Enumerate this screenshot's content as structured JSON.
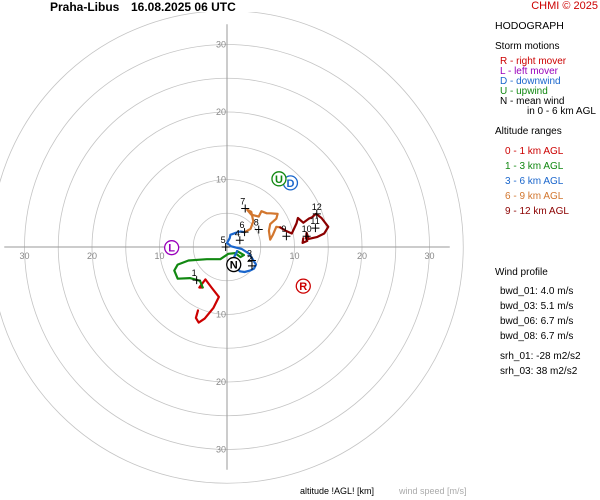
{
  "header": {
    "station": "Praha-Libus",
    "datetime": "16.08.2025 06 UTC",
    "copyright": "CHMI © 2025"
  },
  "panel": {
    "hodograph_title": "HODOGRAPH",
    "storm_motions_title": "Storm motions",
    "storm_motions": [
      {
        "text": "R - right mover",
        "color": "#cc0000"
      },
      {
        "text": "L - left mover",
        "color": "#9900bb"
      },
      {
        "text": "D - downwind",
        "color": "#1a66cc"
      },
      {
        "text": "U - upwind",
        "color": "#118811"
      },
      {
        "text": "N - mean wind",
        "color": "#000000"
      },
      {
        "text": "in 0 - 6 km AGL",
        "color": "#000000"
      }
    ],
    "altitude_title": "Altitude ranges",
    "altitude_ranges": [
      {
        "text": "0 - 1 km AGL",
        "color": "#cc0000"
      },
      {
        "text": "1 - 3 km AGL",
        "color": "#118811"
      },
      {
        "text": "3 - 6 km AGL",
        "color": "#1a66cc"
      },
      {
        "text": "6 - 9 km AGL",
        "color": "#d2762e"
      },
      {
        "text": "9 - 12 km AGL",
        "color": "#8b0000"
      }
    ],
    "wind_profile_title": "Wind profile",
    "wind_profile": [
      "bwd_01: 4.0 m/s",
      "bwd_03: 5.1 m/s",
      "bwd_06: 6.7 m/s",
      "bwd_08: 6.7 m/s",
      "srh_01: -28 m2/s2",
      "srh_03: 38 m2/s2"
    ]
  },
  "footer": {
    "altitude_label": "altitude !AGL! [km]",
    "speed_label": "wind speed [m/s]"
  },
  "chart_data": {
    "type": "line",
    "rings": [
      5,
      10,
      15,
      20,
      25,
      30,
      35
    ],
    "axis_range": [
      -33,
      33
    ],
    "ring_labels": [
      10,
      20,
      30
    ],
    "grid": true,
    "segments": [
      {
        "name": "0 - 1 km AGL",
        "color": "#cc0000",
        "points": [
          [
            -4.3,
            -9.4
          ],
          [
            -4.6,
            -10.5
          ],
          [
            -4.2,
            -11.2
          ],
          [
            -3.3,
            -10.6
          ],
          [
            -2.0,
            -9.0
          ],
          [
            -1.2,
            -7.4
          ],
          [
            -2.3,
            -6.0
          ],
          [
            -3.2,
            -4.8
          ],
          [
            -4.1,
            -6.0
          ],
          [
            -3.6,
            -6.0
          ]
        ]
      },
      {
        "name": "1 - 3 km AGL",
        "color": "#118811",
        "points": [
          [
            -3.6,
            -6.0
          ],
          [
            -4.0,
            -5.0
          ],
          [
            -5.5,
            -4.6
          ],
          [
            -7.3,
            -4.7
          ],
          [
            -7.8,
            -3.5
          ],
          [
            -7.3,
            -2.6
          ],
          [
            -5.7,
            -2.0
          ],
          [
            -3.0,
            -1.8
          ],
          [
            -1.0,
            -1.8
          ],
          [
            0.2,
            -1.0
          ],
          [
            1.2,
            -0.9
          ],
          [
            2.0,
            -1.5
          ],
          [
            2.5,
            -1.2
          ],
          [
            1.5,
            -0.6
          ]
        ]
      },
      {
        "name": "3 - 6 km AGL",
        "color": "#1a66cc",
        "points": [
          [
            1.5,
            -0.6
          ],
          [
            0.9,
            -1.8
          ],
          [
            1.3,
            -2.8
          ],
          [
            1.9,
            -3.6
          ],
          [
            2.6,
            -3.7
          ],
          [
            3.4,
            -3.5
          ],
          [
            4.0,
            -3.2
          ],
          [
            4.3,
            -2.6
          ],
          [
            3.3,
            -1.0
          ],
          [
            2.2,
            -0.3
          ],
          [
            0.6,
            0.1
          ],
          [
            0.0,
            0.6
          ],
          [
            0.4,
            1.3
          ],
          [
            0.5,
            1.8
          ],
          [
            1.3,
            2.1
          ],
          [
            2.0,
            2.3
          ],
          [
            2.6,
            2.2
          ]
        ]
      },
      {
        "name": "6 - 9 km AGL",
        "color": "#d2762e",
        "points": [
          [
            2.6,
            2.2
          ],
          [
            3.5,
            2.7
          ],
          [
            3.9,
            3.8
          ],
          [
            3.6,
            5.2
          ],
          [
            3.0,
            5.5
          ],
          [
            3.6,
            4.8
          ],
          [
            4.7,
            4.5
          ],
          [
            5.1,
            5.3
          ],
          [
            5.9,
            5.0
          ],
          [
            6.5,
            5.0
          ],
          [
            7.5,
            4.9
          ],
          [
            7.3,
            4.2
          ],
          [
            6.4,
            3.4
          ],
          [
            6.2,
            2.4
          ],
          [
            6.4,
            1.1
          ],
          [
            6.8,
            1.8
          ],
          [
            7.3,
            3.0
          ],
          [
            7.9,
            2.9
          ]
        ]
      },
      {
        "name": "9 - 12 km AGL",
        "color": "#8b0000",
        "points": [
          [
            7.9,
            2.9
          ],
          [
            8.7,
            2.4
          ],
          [
            9.6,
            2.0
          ],
          [
            10.3,
            3.5
          ],
          [
            10.5,
            4.3
          ],
          [
            11.3,
            3.6
          ],
          [
            12.1,
            4.2
          ],
          [
            12.6,
            4.4
          ],
          [
            12.9,
            4.7
          ],
          [
            13.2,
            4.9
          ],
          [
            14.0,
            4.3
          ],
          [
            15.0,
            3.0
          ],
          [
            14.4,
            2.0
          ],
          [
            13.4,
            1.5
          ],
          [
            12.1,
            1.2
          ],
          [
            11.8,
            2.1
          ],
          [
            11.7,
            1.3
          ],
          [
            11.9,
            0.9
          ],
          [
            11.2,
            0.6
          ],
          [
            11.3,
            1.3
          ]
        ]
      }
    ],
    "altitude_labels": [
      {
        "text": "1",
        "u": -4.5,
        "v": -4.9
      },
      {
        "text": "2",
        "u": 3.7,
        "v": -2.8
      },
      {
        "text": "3",
        "u": 3.7,
        "v": -2.0
      },
      {
        "text": "4",
        "u": 1.9,
        "v": 1.0
      },
      {
        "text": "5",
        "u": -0.2,
        "v": 0.0
      },
      {
        "text": "6",
        "u": 2.6,
        "v": 2.2
      },
      {
        "text": "7",
        "u": 2.7,
        "v": 5.7
      },
      {
        "text": "8",
        "u": 4.7,
        "v": 2.6
      },
      {
        "text": "9",
        "u": 8.8,
        "v": 1.6
      },
      {
        "text": "10",
        "u": 11.8,
        "v": 1.6
      },
      {
        "text": "11",
        "u": 13.1,
        "v": 2.8
      },
      {
        "text": "12",
        "u": 13.3,
        "v": 4.9
      }
    ],
    "storm_markers": [
      {
        "label": "R",
        "u": 11.3,
        "v": -5.8,
        "color": "#cc0000"
      },
      {
        "label": "L",
        "u": -8.2,
        "v": -0.1,
        "color": "#9900bb"
      },
      {
        "label": "D",
        "u": 9.4,
        "v": 9.5,
        "color": "#1a66cc"
      },
      {
        "label": "U",
        "u": 7.7,
        "v": 10.1,
        "color": "#118811"
      },
      {
        "label": "N",
        "u": 1.0,
        "v": -2.6,
        "color": "#000000"
      }
    ]
  }
}
